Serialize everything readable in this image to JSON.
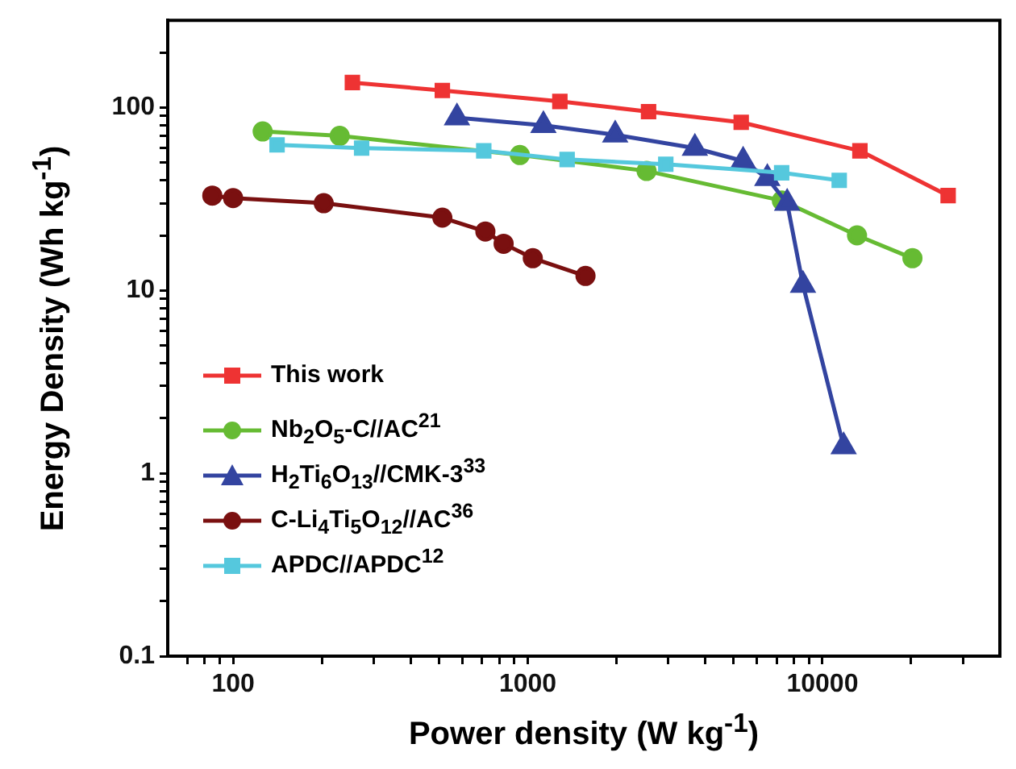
{
  "chart_data": {
    "type": "line",
    "xlabel": "Power density (W kg$^{-1}$)",
    "ylabel": "Energy Density (Wh kg$^{-1}$)",
    "log": "xy",
    "legend": "bottom left",
    "line_style": "solid",
    "xlim": [
      60,
      40000
    ],
    "ylim": [
      0.1,
      300
    ],
    "xticks": [
      {
        "value": 70,
        "label": null
      },
      {
        "value": 80,
        "label": null
      },
      {
        "value": 90,
        "label": null
      },
      100,
      {
        "value": 200,
        "label": null
      },
      {
        "value": 300,
        "label": null
      },
      {
        "value": 400,
        "label": null
      },
      {
        "value": 500,
        "label": null
      },
      {
        "value": 600,
        "label": null
      },
      {
        "value": 700,
        "label": null
      },
      {
        "value": 800,
        "label": null
      },
      {
        "value": 900,
        "label": null
      },
      1000,
      {
        "value": 2000,
        "label": null
      },
      {
        "value": 3000,
        "label": null
      },
      {
        "value": 4000,
        "label": null
      },
      {
        "value": 5000,
        "label": null
      },
      {
        "value": 6000,
        "label": null
      },
      {
        "value": 7000,
        "label": null
      },
      {
        "value": 8000,
        "label": null
      },
      {
        "value": 9000,
        "label": null
      },
      10000,
      {
        "value": 20000,
        "label": null
      },
      {
        "value": 30000,
        "label": null
      }
    ],
    "yticks": [
      0.1,
      {
        "value": 0.2,
        "label": null
      },
      {
        "value": 0.3,
        "label": null
      },
      {
        "value": 0.4,
        "label": null
      },
      {
        "value": 0.5,
        "label": null
      },
      {
        "value": 0.6,
        "label": null
      },
      {
        "value": 0.7,
        "label": null
      },
      {
        "value": 0.8,
        "label": null
      },
      {
        "value": 0.9,
        "label": null
      },
      1,
      {
        "value": 2,
        "label": null
      },
      {
        "value": 3,
        "label": null
      },
      {
        "value": 4,
        "label": null
      },
      {
        "value": 5,
        "label": null
      },
      {
        "value": 6,
        "label": null
      },
      {
        "value": 7,
        "label": null
      },
      {
        "value": 8,
        "label": null
      },
      {
        "value": 9,
        "label": null
      },
      10,
      {
        "value": 20,
        "label": null
      },
      {
        "value": 30,
        "label": null
      },
      {
        "value": 40,
        "label": null
      },
      {
        "value": 50,
        "label": null
      },
      {
        "value": 60,
        "label": null
      },
      {
        "value": 70,
        "label": null
      },
      {
        "value": 80,
        "label": null
      },
      {
        "value": 90,
        "label": null
      },
      100,
      {
        "value": 200,
        "label": null
      }
    ],
    "series": [
      {
        "name": "This work",
        "color": "#ee3333",
        "marker": "square",
        "x": [
          254,
          513,
          1285,
          2570,
          5300,
          13400,
          26700
        ],
        "values": [
          137,
          124,
          108,
          95,
          83,
          58,
          33
        ]
      },
      {
        "name": "Nb$_{2}$O$_{5}$-C//AC$^{21}$",
        "color": "#66bb33",
        "marker": "circle",
        "x": [
          126,
          230,
          940,
          2530,
          7280,
          13100,
          20200
        ],
        "values": [
          74,
          70,
          55,
          45,
          31,
          20,
          15
        ]
      },
      {
        "name": "H$_{2}$Ti$_{6}$O$_{13}$//CMK-3$^{33}$",
        "color": "#3344a0",
        "marker": "triangle",
        "x": [
          575,
          1130,
          1980,
          3690,
          5380,
          6500,
          7590,
          8590,
          11800
        ],
        "values": [
          88,
          80,
          71,
          60,
          51,
          41,
          30,
          10.7,
          1.4
        ]
      },
      {
        "name": "C-Li$_{4}$Ti$_{5}$O$_{12}$//AC$^{36}$",
        "color": "#7a1010",
        "marker": "circle",
        "x": [
          85,
          100,
          203,
          513,
          718,
          828,
          1040,
          1570
        ],
        "values": [
          33,
          32,
          30,
          25,
          21,
          18,
          15,
          12
        ]
      },
      {
        "name": "APDC//APDC$^{12}$",
        "color": "#55c8dd",
        "marker": "square",
        "x": [
          141,
          273,
          709,
          1360,
          2940,
          7270,
          11400
        ],
        "values": [
          62.5,
          60,
          58,
          52,
          49,
          44,
          40
        ]
      }
    ]
  }
}
